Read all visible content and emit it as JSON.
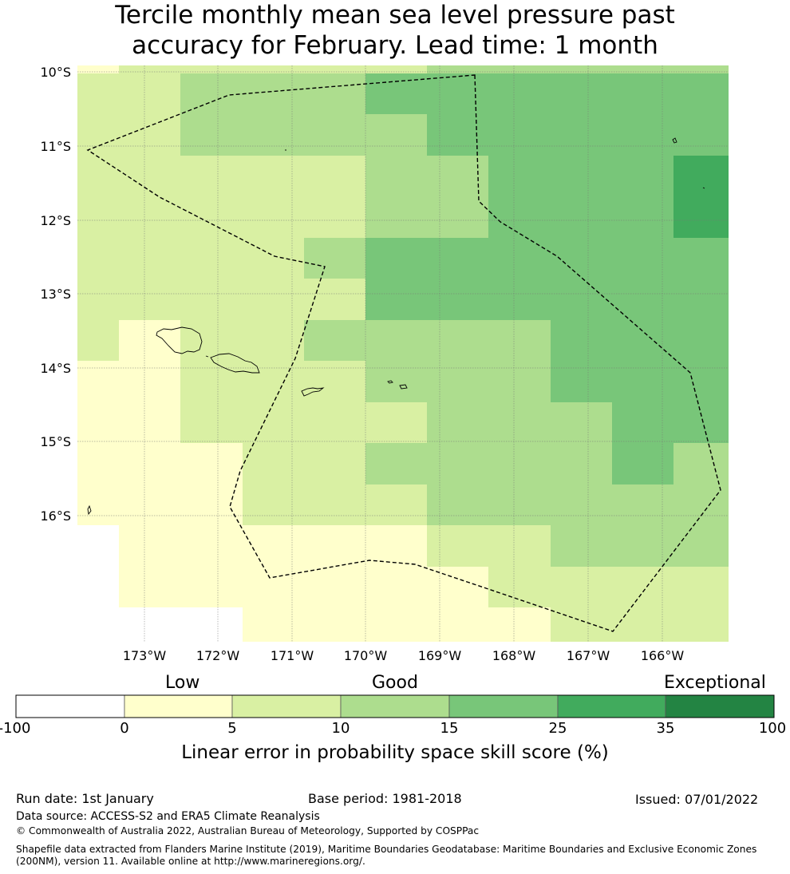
{
  "title_line1": "Tercile monthly mean sea level pressure past",
  "title_line2": "accuracy for February. Lead time: 1 month",
  "map": {
    "lat_labels": [
      "10°S",
      "11°S",
      "12°S",
      "13°S",
      "14°S",
      "15°S",
      "16°S"
    ],
    "lon_labels": [
      "173°W",
      "172°W",
      "171°W",
      "170°W",
      "169°W",
      "168°W",
      "167°W",
      "166°W"
    ],
    "layers": [
      "tercile-skill-grid",
      "coastlines",
      "maritime-boundary-eez"
    ]
  },
  "colorbar": {
    "categories": [
      "Low",
      "Good",
      "Exceptional"
    ],
    "ticks": [
      "-100",
      "0",
      "5",
      "10",
      "15",
      "25",
      "35",
      "100"
    ],
    "colors": [
      "#ffffff",
      "#ffffcc",
      "#d9f0a3",
      "#addd8e",
      "#78c679",
      "#41ab5d",
      "#238443"
    ],
    "title": "Linear error in probability space skill score (%)"
  },
  "footer": {
    "run_date": "Run date: 1st January",
    "base_period": "Base period: 1981-2018",
    "issued": "Issued: 07/01/2022",
    "data_source": "Data source: ACCESS-S2 and ERA5 Climate Reanalysis",
    "copyright": "© Commonwealth of Australia 2022, Australian Bureau of Meteorology, Supported by COSPPac",
    "shapefile_line1": "Shapefile data extracted from Flanders Marine Institute (2019), Maritime Boundaries Geodatabase: Maritime Boundaries and Exclusive Economic Zones",
    "shapefile_line2": "(200NM), version 11. Available online at http://www.marineregions.org/."
  }
}
